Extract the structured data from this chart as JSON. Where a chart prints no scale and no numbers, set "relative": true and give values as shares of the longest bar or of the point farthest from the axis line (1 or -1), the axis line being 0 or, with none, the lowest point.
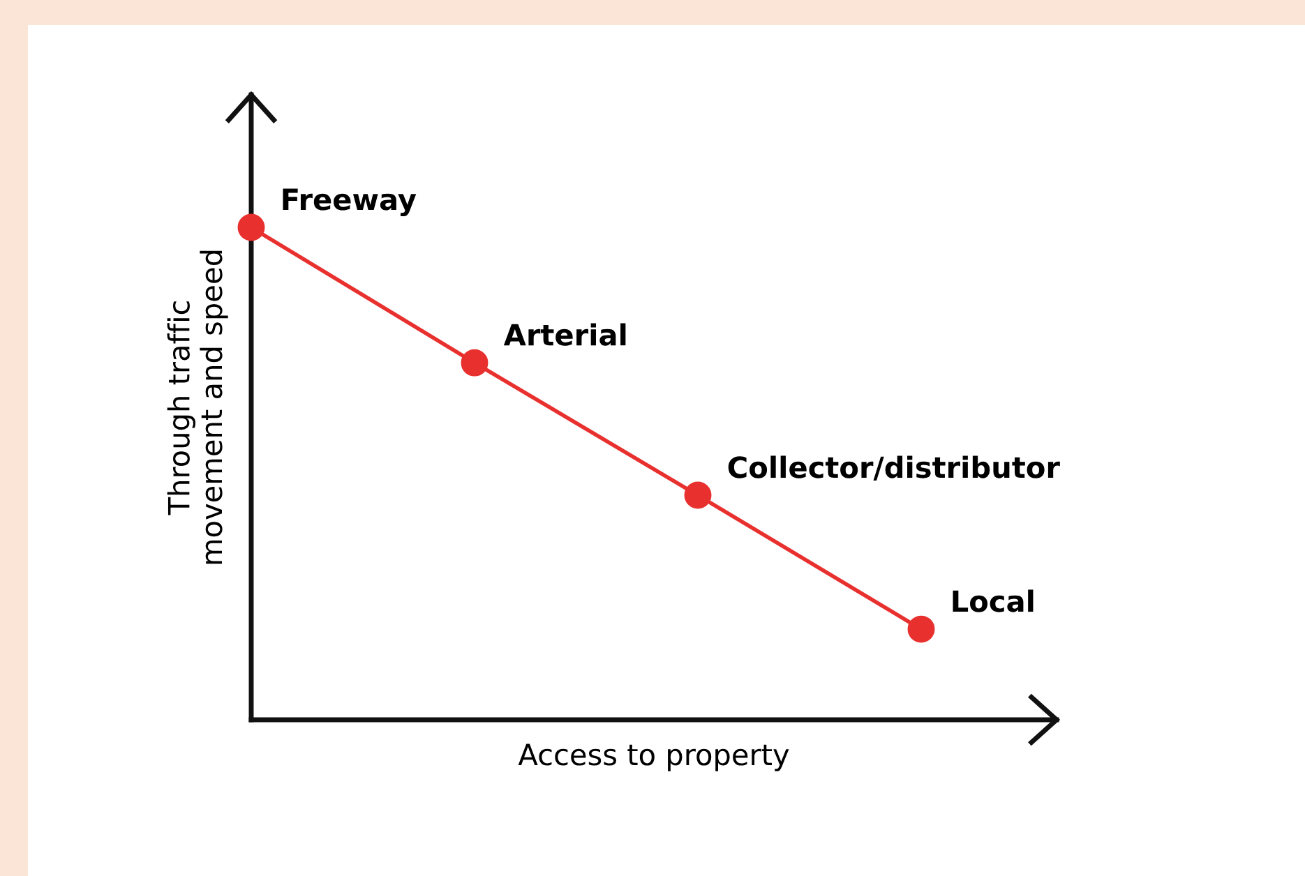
{
  "chart_data": {
    "type": "line",
    "relative": true,
    "xlabel": "Access to property",
    "ylabel": "Through traffic\nmovement and speed",
    "categories": [
      null,
      null,
      null,
      null
    ],
    "series": [
      {
        "color": "#e8312f",
        "values": [
          1,
          0.725,
          0.456,
          0.184
        ]
      }
    ],
    "marker": "circle",
    "line_style": "solid",
    "legend": false,
    "tick_labels": false,
    "annotations": [
      "Freeway",
      "Arterial",
      "Collector/distributor",
      "Local"
    ]
  }
}
